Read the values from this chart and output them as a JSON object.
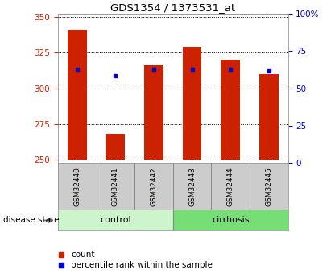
{
  "title": "GDS1354 / 1373531_at",
  "samples": [
    "GSM32440",
    "GSM32441",
    "GSM32442",
    "GSM32443",
    "GSM32444",
    "GSM32445"
  ],
  "bar_values": [
    341,
    268,
    316,
    329,
    320,
    310
  ],
  "percentile_values": [
    313,
    309,
    313,
    313,
    313,
    312
  ],
  "bar_bottom": 250,
  "ylim_left": [
    248,
    352
  ],
  "ylim_right": [
    0,
    100
  ],
  "yticks_left": [
    250,
    275,
    300,
    325,
    350
  ],
  "yticks_right": [
    0,
    25,
    50,
    75,
    100
  ],
  "yticklabels_right": [
    "0",
    "25",
    "50",
    "75",
    "100%"
  ],
  "bar_color": "#cc2200",
  "percentile_color": "#0000cc",
  "group_labels": [
    "control",
    "cirrhosis"
  ],
  "group_colors": [
    "#ccf5cc",
    "#77dd77"
  ],
  "disease_state_label": "disease state",
  "legend_count_label": "count",
  "legend_percentile_label": "percentile rank within the sample",
  "bg_color": "#ffffff",
  "plot_bg_color": "#ffffff",
  "tick_color_left": "#cc2200",
  "tick_color_right": "#0000cc",
  "grid_color": "#000000",
  "bar_width": 0.5,
  "sample_box_color": "#cccccc"
}
